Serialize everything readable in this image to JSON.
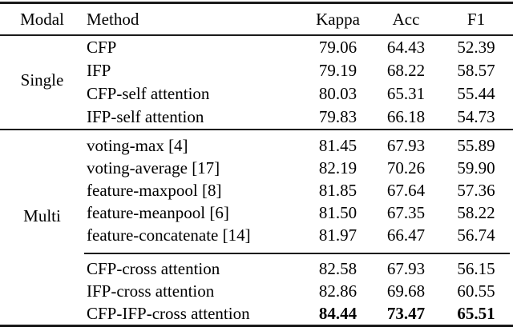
{
  "header": {
    "modal": "Modal",
    "method": "Method",
    "kappa": "Kappa",
    "acc": "Acc",
    "f1": "F1"
  },
  "modal_groups": {
    "single": "Single",
    "multi": "Multi"
  },
  "rows": [
    {
      "method": "CFP",
      "kappa": "79.06",
      "acc": "64.43",
      "f1": "52.39"
    },
    {
      "method": "IFP",
      "kappa": "79.19",
      "acc": "68.22",
      "f1": "58.57"
    },
    {
      "method": "CFP-self attention",
      "kappa": "80.03",
      "acc": "65.31",
      "f1": "55.44"
    },
    {
      "method": "IFP-self attention",
      "kappa": "79.83",
      "acc": "66.18",
      "f1": "54.73"
    },
    {
      "method": "voting-max [4]",
      "kappa": "81.45",
      "acc": "67.93",
      "f1": "55.89"
    },
    {
      "method": "voting-average [17]",
      "kappa": "82.19",
      "acc": "70.26",
      "f1": "59.90"
    },
    {
      "method": "feature-maxpool [8]",
      "kappa": "81.85",
      "acc": "67.64",
      "f1": "57.36"
    },
    {
      "method": "feature-meanpool [6]",
      "kappa": "81.50",
      "acc": "67.35",
      "f1": "58.22"
    },
    {
      "method": "feature-concatenate [14]",
      "kappa": "81.97",
      "acc": "66.47",
      "f1": "56.74"
    },
    {
      "method": "CFP-cross attention",
      "kappa": "82.58",
      "acc": "67.93",
      "f1": "56.15"
    },
    {
      "method": "IFP-cross attention",
      "kappa": "82.86",
      "acc": "69.68",
      "f1": "60.55"
    },
    {
      "method": "CFP-IFP-cross attention",
      "kappa": "84.44",
      "acc": "73.47",
      "f1": "65.51"
    }
  ],
  "colors": {
    "background": "#ffffff",
    "text": "#000000",
    "rule": "#1a1a1a"
  },
  "chart_data": {
    "type": "table",
    "columns": [
      "Modal",
      "Method",
      "Kappa",
      "Acc",
      "F1"
    ],
    "rows": [
      [
        "Single",
        "CFP",
        79.06,
        64.43,
        52.39
      ],
      [
        "Single",
        "IFP",
        79.19,
        68.22,
        58.57
      ],
      [
        "Single",
        "CFP-self attention",
        80.03,
        65.31,
        55.44
      ],
      [
        "Single",
        "IFP-self attention",
        79.83,
        66.18,
        54.73
      ],
      [
        "Multi",
        "voting-max [4]",
        81.45,
        67.93,
        55.89
      ],
      [
        "Multi",
        "voting-average [17]",
        82.19,
        70.26,
        59.9
      ],
      [
        "Multi",
        "feature-maxpool [8]",
        81.85,
        67.64,
        57.36
      ],
      [
        "Multi",
        "feature-meanpool [6]",
        81.5,
        67.35,
        58.22
      ],
      [
        "Multi",
        "feature-concatenate [14]",
        81.97,
        66.47,
        56.74
      ],
      [
        "Multi",
        "CFP-cross attention",
        82.58,
        67.93,
        56.15
      ],
      [
        "Multi",
        "IFP-cross attention",
        82.86,
        69.68,
        60.55
      ],
      [
        "Multi",
        "CFP-IFP-cross attention",
        84.44,
        73.47,
        65.51
      ]
    ],
    "bold_cells_note": "last row Kappa/Acc/F1 values are bold (best results)"
  }
}
